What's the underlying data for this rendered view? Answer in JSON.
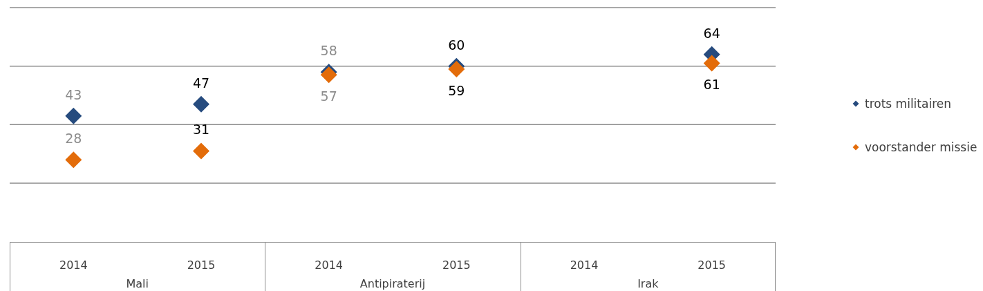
{
  "chart_data": {
    "type": "scatter",
    "categories": [
      "2014",
      "2015",
      "2014",
      "2015",
      "2014",
      "2015"
    ],
    "annotations": [
      "Mali",
      "Antipiraterij",
      "Irak"
    ],
    "series": [
      {
        "name": "trots militairen",
        "color": "#264b7e",
        "values": [
          43,
          47,
          58,
          60,
          null,
          64
        ]
      },
      {
        "name": "voorstander missie",
        "color": "#e36c0a",
        "values": [
          28,
          31,
          57,
          59,
          null,
          61
        ]
      }
    ],
    "ylim": [
      20,
      80
    ],
    "yticks": [
      {
        "value": 20,
        "label": null
      },
      {
        "value": 40,
        "label": null
      },
      {
        "value": 60,
        "label": null
      },
      {
        "value": 80,
        "label": null
      }
    ],
    "tick_labels": "x",
    "grid": "y",
    "legend": "right",
    "marker": "diamond",
    "data_labels": true
  }
}
